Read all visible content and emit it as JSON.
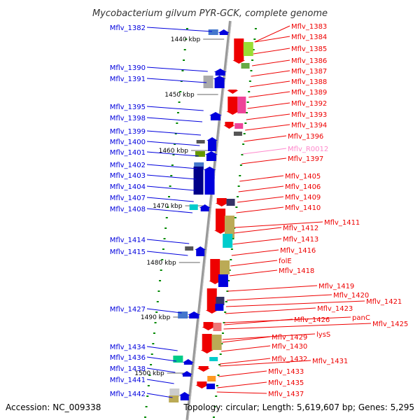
{
  "title": "Mycobacterium gilvum PYR-GCK, complete genome",
  "accession": "Accession: NC_009338",
  "topology": "Topology: circular; Length: 5,619,607 bp; Genes: 5,295",
  "colors": {
    "plus_strand": "#0000dd",
    "minus_strand": "#ee0000",
    "rna": "#ff88cc",
    "axis": "#999999",
    "tick": "#008800"
  },
  "scale_ticks": [
    "1440 kbp",
    "1450 kbp",
    "1460 kbp",
    "1470 kbp",
    "1480 kbp",
    "1490 kbp",
    "1500 kbp"
  ],
  "left_genes": [
    "Mflv_1382",
    "Mflv_1390",
    "Mflv_1391",
    "Mflv_1395",
    "Mflv_1398",
    "Mflv_1399",
    "Mflv_1400",
    "Mflv_1401",
    "Mflv_1402",
    "Mflv_1403",
    "Mflv_1404",
    "Mflv_1407",
    "Mflv_1408",
    "Mflv_1414",
    "Mflv_1415",
    "Mflv_1427",
    "Mflv_1434",
    "Mflv_1436",
    "Mflv_1438",
    "Mflv_1441",
    "Mflv_1442"
  ],
  "right_genes": [
    "Mflv_1383",
    "Mflv_1384",
    "Mflv_1385",
    "Mflv_1386",
    "Mflv_1387",
    "Mflv_1388",
    "Mflv_1389",
    "Mflv_1392",
    "Mflv_1393",
    "Mflv_1394",
    "Mflv_1396",
    "Mflv_R0012",
    "Mflv_1397",
    "Mflv_1405",
    "Mflv_1406",
    "Mflv_1409",
    "Mflv_1410",
    "Mflv_1411",
    "Mflv_1412",
    "Mflv_1413",
    "Mflv_1416",
    "folE",
    "Mflv_1418",
    "Mflv_1419",
    "Mflv_1420",
    "Mflv_1421",
    "Mflv_1423",
    "panC",
    "Mflv_1425",
    "Mflv_1426",
    "lysS",
    "Mflv_1429",
    "Mflv_1430",
    "Mflv_1431",
    "Mflv_1432",
    "Mflv_1433",
    "Mflv_1435",
    "Mflv_1437"
  ]
}
